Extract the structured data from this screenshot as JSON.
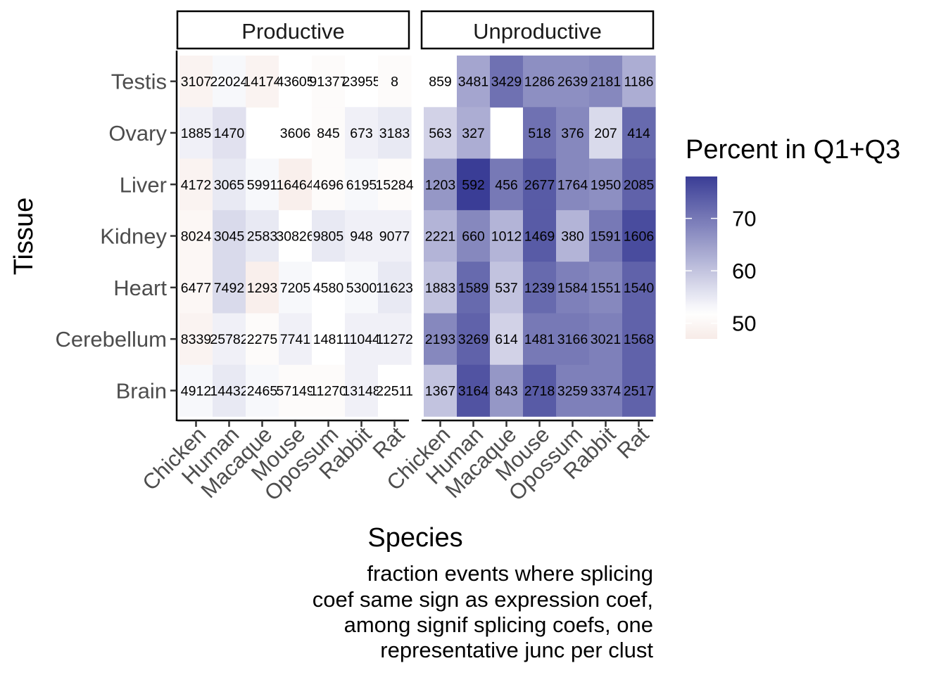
{
  "chart_data": {
    "type": "heatmap",
    "title": "",
    "xlabel": "Species",
    "ylabel": "Tissue",
    "caption": [
      "fraction events where splicing",
      "coef same sign as expression coef,",
      "among signif splicing coefs, one",
      "representative junc per clust"
    ],
    "facets": [
      "Productive",
      "Unproductive"
    ],
    "species": [
      "Chicken",
      "Human",
      "Macaque",
      "Mouse",
      "Opossum",
      "Rabbit",
      "Rat"
    ],
    "tissues": [
      "Testis",
      "Ovary",
      "Liver",
      "Kidney",
      "Heart",
      "Cerebellum",
      "Brain"
    ],
    "legend": {
      "title": "Percent in Q1+Q3",
      "ticks": [
        50,
        60,
        70
      ],
      "range": [
        47,
        78
      ],
      "low_color": "#f7ebe7",
      "mid_color": "#ffffff",
      "mid_value": 52,
      "high_color": "#3a3d96"
    },
    "panels": [
      {
        "facet": "Productive",
        "percent": [
          [
            49,
            53,
            49,
            52,
            51,
            52,
            51
          ],
          [
            54,
            56,
            null,
            52,
            51,
            54,
            55
          ],
          [
            49,
            55,
            53,
            48,
            51,
            53,
            51
          ],
          [
            50,
            57,
            55,
            52,
            55,
            54,
            54
          ],
          [
            50,
            57,
            48,
            53,
            52,
            53,
            55
          ],
          [
            49,
            54,
            51,
            54,
            52,
            54,
            54
          ],
          [
            53,
            55,
            53,
            51,
            51,
            54,
            52
          ]
        ],
        "labels": [
          [
            "3107",
            "22024",
            "14174",
            "43605",
            "91377",
            "23955",
            "8"
          ],
          [
            "1885",
            "1470",
            "",
            "3606",
            "845",
            "673",
            "3183"
          ],
          [
            "4172",
            "3065",
            "5991",
            "16464",
            "4696",
            "6195",
            "15284"
          ],
          [
            "8024",
            "3045",
            "2583",
            "30826",
            "9805",
            "948",
            "9077"
          ],
          [
            "6477",
            "7492",
            "1293",
            "7205",
            "4580",
            "5300",
            "11623"
          ],
          [
            "8339",
            "25782",
            "2275",
            "7741",
            "1481",
            "11044",
            "11272"
          ],
          [
            "4912",
            "14432",
            "2465",
            "57149",
            "11270",
            "13148",
            "22511"
          ]
        ]
      },
      {
        "facet": "Unproductive",
        "percent": [
          [
            52,
            64,
            71,
            67,
            67,
            68,
            63
          ],
          [
            58,
            63,
            null,
            71,
            68,
            57,
            72
          ],
          [
            66,
            78,
            70,
            74,
            68,
            67,
            73
          ],
          [
            62,
            68,
            62,
            74,
            62,
            70,
            76
          ],
          [
            60,
            72,
            60,
            72,
            69,
            68,
            73
          ],
          [
            68,
            73,
            58,
            70,
            70,
            69,
            73
          ],
          [
            60,
            75,
            66,
            74,
            69,
            69,
            73
          ]
        ],
        "labels": [
          [
            "859",
            "3481",
            "3429",
            "1286",
            "2639",
            "2181",
            "1186"
          ],
          [
            "563",
            "327",
            "",
            "518",
            "376",
            "207",
            "414"
          ],
          [
            "1203",
            "592",
            "456",
            "2677",
            "1764",
            "1950",
            "2085"
          ],
          [
            "2221",
            "660",
            "1012",
            "1469",
            "380",
            "1591",
            "1606"
          ],
          [
            "1883",
            "1589",
            "537",
            "1239",
            "1584",
            "1551",
            "1540"
          ],
          [
            "2193",
            "3269",
            "614",
            "1481",
            "3166",
            "3021",
            "1568"
          ],
          [
            "1367",
            "3164",
            "843",
            "2718",
            "3259",
            "3374",
            "2517"
          ]
        ]
      }
    ]
  }
}
